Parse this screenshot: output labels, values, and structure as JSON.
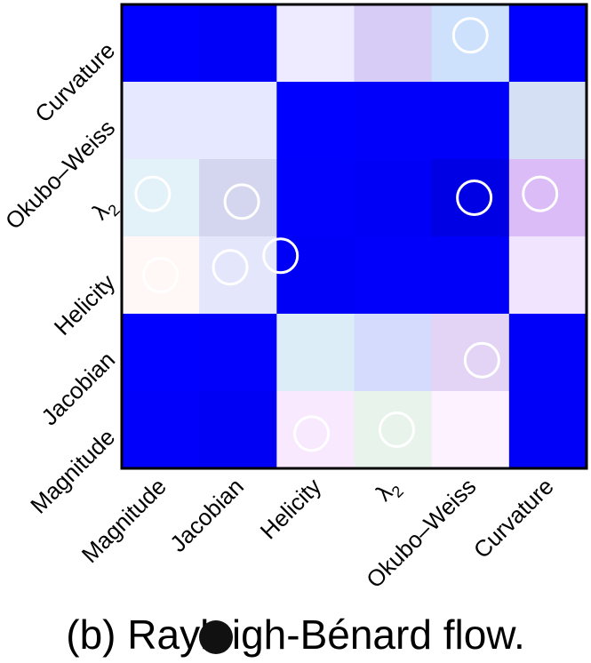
{
  "caption": "(b) Rayleigh-Bénard flow.",
  "chart_data": {
    "type": "heatmap",
    "title": "",
    "xlabel": "",
    "ylabel": "",
    "x_categories": [
      "Magnitude",
      "Jacobian",
      "Helicity",
      "λ2",
      "Okubo–Weiss",
      "Curvature"
    ],
    "y_categories_top_to_bottom": [
      "Curvature",
      "Okubo–Weiss",
      "λ2",
      "Helicity",
      "Jacobian",
      "Magnitude"
    ],
    "cells": [
      [
        "#0000ff",
        "#0000f8",
        "#eeeaff",
        "#d6ccf5",
        "#cde0fc",
        "#0000ff"
      ],
      [
        "#e5e8ff",
        "#e6e8ff",
        "#0000ff",
        "#0000fb",
        "#0000fa",
        "#d5e0f5"
      ],
      [
        "#e3f1f8",
        "#d3d6ee",
        "#0000fb",
        "#0000f6",
        "#0000e5",
        "#dbbcf7"
      ],
      [
        "#fff8f6",
        "#e4e6fc",
        "#0000f6",
        "#0000fb",
        "#0000fa",
        "#f1e4ff"
      ],
      [
        "#0000ff",
        "#0000fb",
        "#dcedf8",
        "#d5dbfc",
        "#e3d4f5",
        "#0000fa"
      ],
      [
        "#0000fb",
        "#0000f5",
        "#f8e9ff",
        "#e7f3eb",
        "#fdf2ff",
        "#0000f8"
      ]
    ],
    "circles": [
      {
        "row": 0,
        "col": 4,
        "dx": 0.0,
        "dy": -0.1
      },
      {
        "row": 2,
        "col": 0,
        "dx": -0.1,
        "dy": -0.05
      },
      {
        "row": 2,
        "col": 1,
        "dx": 0.05,
        "dy": 0.05
      },
      {
        "row": 2,
        "col": 4,
        "dx": 0.05,
        "dy": 0.0
      },
      {
        "row": 2,
        "col": 5,
        "dx": -0.1,
        "dy": -0.05
      },
      {
        "row": 3,
        "col": 0,
        "dx": 0.0,
        "dy": 0.0
      },
      {
        "row": 3,
        "col": 1,
        "dx": -0.1,
        "dy": -0.1
      },
      {
        "row": 3,
        "col": 2,
        "dx": -0.45,
        "dy": -0.25
      },
      {
        "row": 4,
        "col": 4,
        "dx": 0.15,
        "dy": 0.1
      },
      {
        "row": 5,
        "col": 2,
        "dx": -0.05,
        "dy": 0.05
      },
      {
        "row": 5,
        "col": 3,
        "dx": 0.05,
        "dy": 0.0
      }
    ],
    "circle_color": "#ffffff",
    "grid": false
  }
}
